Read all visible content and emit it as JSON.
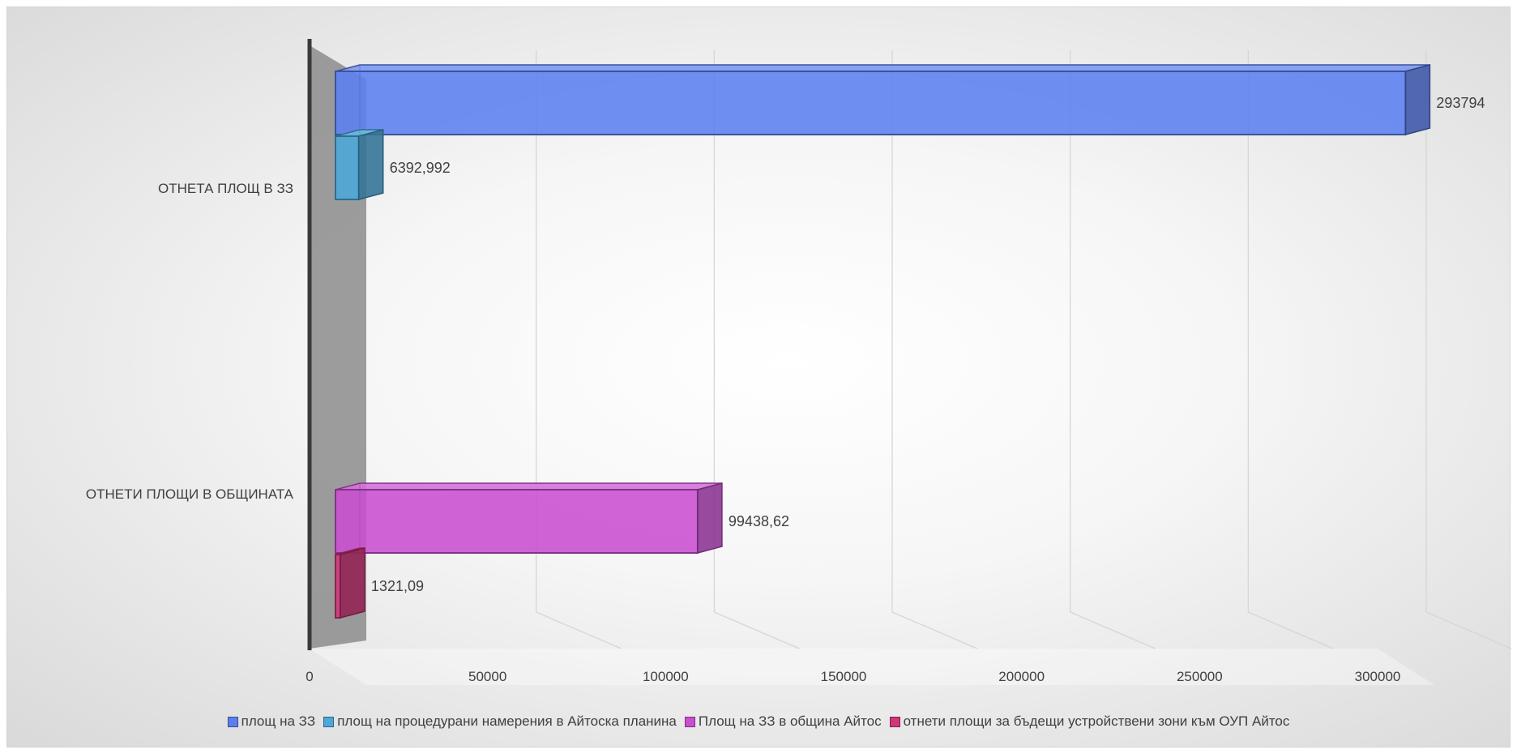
{
  "chart_data": {
    "type": "bar",
    "orientation": "horizontal",
    "style": "3d",
    "categories": [
      "ОТНЕТА ПЛОЩ В ЗЗ",
      "ОТНЕТИ ПЛОЩИ В ОБЩИНАТА"
    ],
    "series": [
      {
        "name": "площ на ЗЗ",
        "color": "#5b7ff0",
        "values": [
          293794,
          null
        ],
        "labels": [
          "293794",
          ""
        ]
      },
      {
        "name": "площ на процедурани намерения в Айтоска планина",
        "color": "#4ba8d8",
        "values": [
          6392.992,
          null
        ],
        "labels": [
          "6392,992",
          ""
        ]
      },
      {
        "name": "Площ на ЗЗ в община Айтос",
        "color": "#c94fd2",
        "values": [
          null,
          99438.62
        ],
        "labels": [
          "",
          "99438,62"
        ]
      },
      {
        "name": "отнети площи за бъдещи устройствени зони към ОУП Айтос",
        "color": "#d1357a",
        "values": [
          null,
          1321.09
        ],
        "labels": [
          "",
          "1321,09"
        ]
      }
    ],
    "xlim": [
      0,
      300000
    ],
    "ticks": [
      "0",
      "50000",
      "100000",
      "150000",
      "200000",
      "250000",
      "300000"
    ],
    "grid": true,
    "legend_position": "bottom"
  }
}
